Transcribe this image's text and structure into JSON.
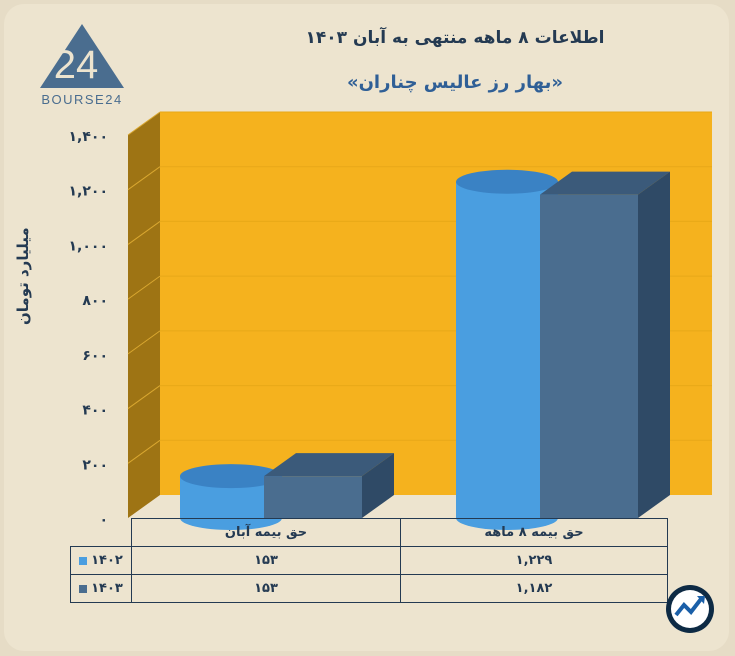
{
  "header": {
    "title": "اطلاعات ۸ ماهه منتهی به آبان ۱۴۰۳",
    "subtitle": "«بهار رز عالیس چناران»",
    "logo_text": "BOURSE24",
    "logo_number": "24"
  },
  "colors": {
    "plot_bg": "#f5b21e",
    "wall_side": "#9e7414",
    "series_1402": "#4a9ee0",
    "series_1403": "#4a6d8f",
    "text": "#243a52"
  },
  "chart_data": {
    "type": "bar",
    "ylabel": "میلیارد تومان",
    "ylim": [
      0,
      1400
    ],
    "yticks": [
      "۰",
      "۲۰۰",
      "۴۰۰",
      "۶۰۰",
      "۸۰۰",
      "۱,۰۰۰",
      "۱,۲۰۰",
      "۱,۴۰۰"
    ],
    "categories": [
      "حق بیمه آبان",
      "حق بیمه ۸ ماهه"
    ],
    "series": [
      {
        "name": "۱۴۰۲",
        "values": [
          153,
          1229
        ],
        "labels": [
          "۱۵۳",
          "۱,۲۲۹"
        ],
        "shape": "cylinder"
      },
      {
        "name": "۱۴۰۳",
        "values": [
          153,
          1182
        ],
        "labels": [
          "۱۵۳",
          "۱,۱۸۲"
        ],
        "shape": "box"
      }
    ]
  },
  "brand_icon": "trend-arrow-icon"
}
